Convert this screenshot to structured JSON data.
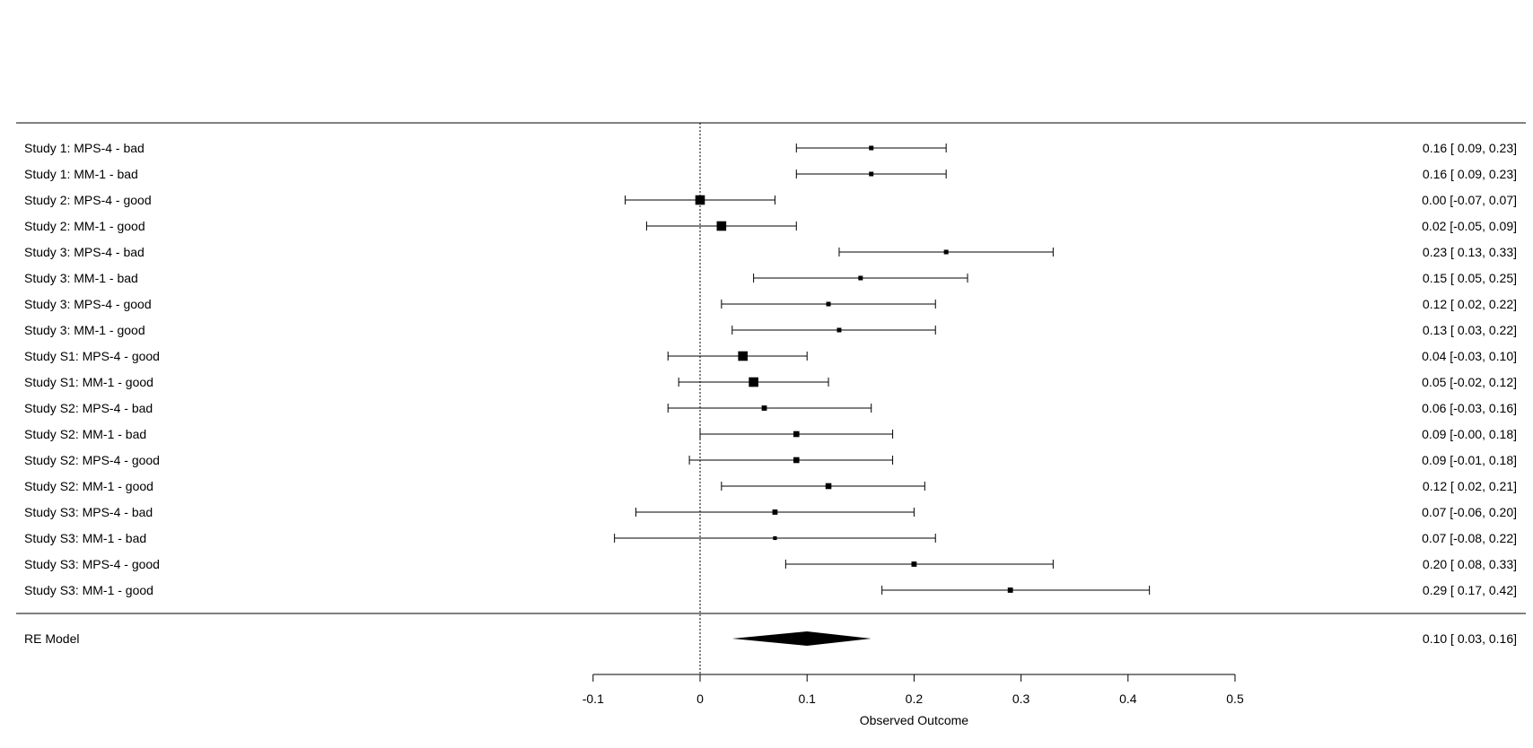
{
  "chart_data": {
    "type": "forest",
    "xlabel": "Observed Outcome",
    "xlim": [
      -0.1,
      0.5
    ],
    "xticks": [
      -0.1,
      0,
      0.1,
      0.2,
      0.3,
      0.4,
      0.5
    ],
    "xtick_labels": [
      "-0.1",
      "0",
      "0.1",
      "0.2",
      "0.3",
      "0.4",
      "0.5"
    ],
    "reference_line": 0,
    "studies": [
      {
        "label": "Study 1: MPS-4 - bad",
        "estimate": 0.16,
        "lower": 0.09,
        "upper": 0.23,
        "text": "0.16 [ 0.09, 0.23]",
        "weight": 1.0
      },
      {
        "label": "Study 1: MM-1 - bad",
        "estimate": 0.16,
        "lower": 0.09,
        "upper": 0.23,
        "text": "0.16 [ 0.09, 0.23]",
        "weight": 1.0
      },
      {
        "label": "Study 2: MPS-4 - good",
        "estimate": 0.0,
        "lower": -0.07,
        "upper": 0.07,
        "text": "0.00 [-0.07, 0.07]",
        "weight": 2.4
      },
      {
        "label": "Study 2: MM-1 - good",
        "estimate": 0.02,
        "lower": -0.05,
        "upper": 0.09,
        "text": "0.02 [-0.05, 0.09]",
        "weight": 2.4
      },
      {
        "label": "Study 3: MPS-4 - bad",
        "estimate": 0.23,
        "lower": 0.13,
        "upper": 0.33,
        "text": "0.23 [ 0.13, 0.33]",
        "weight": 1.0
      },
      {
        "label": "Study 3: MM-1 - bad",
        "estimate": 0.15,
        "lower": 0.05,
        "upper": 0.25,
        "text": "0.15 [ 0.05, 0.25]",
        "weight": 1.0
      },
      {
        "label": "Study 3: MPS-4 - good",
        "estimate": 0.12,
        "lower": 0.02,
        "upper": 0.22,
        "text": "0.12 [ 0.02, 0.22]",
        "weight": 1.0
      },
      {
        "label": "Study 3: MM-1 - good",
        "estimate": 0.13,
        "lower": 0.03,
        "upper": 0.22,
        "text": "0.13 [ 0.03, 0.22]",
        "weight": 1.0
      },
      {
        "label": "Study S1: MPS-4 - good",
        "estimate": 0.04,
        "lower": -0.03,
        "upper": 0.1,
        "text": "0.04 [-0.03, 0.10]",
        "weight": 2.4
      },
      {
        "label": "Study S1: MM-1 - good",
        "estimate": 0.05,
        "lower": -0.02,
        "upper": 0.12,
        "text": "0.05 [-0.02, 0.12]",
        "weight": 2.4
      },
      {
        "label": "Study S2: MPS-4 - bad",
        "estimate": 0.06,
        "lower": -0.03,
        "upper": 0.16,
        "text": "0.06 [-0.03, 0.16]",
        "weight": 1.2
      },
      {
        "label": "Study S2: MM-1 - bad",
        "estimate": 0.09,
        "lower": -0.0,
        "upper": 0.18,
        "text": "0.09 [-0.00, 0.18]",
        "weight": 1.4
      },
      {
        "label": "Study S2: MPS-4 - good",
        "estimate": 0.09,
        "lower": -0.01,
        "upper": 0.18,
        "text": "0.09 [-0.01, 0.18]",
        "weight": 1.4
      },
      {
        "label": "Study S2: MM-1 - good",
        "estimate": 0.12,
        "lower": 0.02,
        "upper": 0.21,
        "text": "0.12 [ 0.02, 0.21]",
        "weight": 1.4
      },
      {
        "label": "Study S3: MPS-4 - bad",
        "estimate": 0.07,
        "lower": -0.06,
        "upper": 0.2,
        "text": "0.07 [-0.06, 0.20]",
        "weight": 1.2
      },
      {
        "label": "Study S3: MM-1 - bad",
        "estimate": 0.07,
        "lower": -0.08,
        "upper": 0.22,
        "text": "0.07 [-0.08, 0.22]",
        "weight": 0.8
      },
      {
        "label": "Study S3: MPS-4 - good",
        "estimate": 0.2,
        "lower": 0.08,
        "upper": 0.33,
        "text": "0.20 [ 0.08, 0.33]",
        "weight": 1.2
      },
      {
        "label": "Study S3: MM-1 - good",
        "estimate": 0.29,
        "lower": 0.17,
        "upper": 0.42,
        "text": "0.29 [ 0.17, 0.42]",
        "weight": 1.2
      }
    ],
    "summary": {
      "label": "RE Model",
      "estimate": 0.1,
      "lower": 0.03,
      "upper": 0.16,
      "text": "0.10 [ 0.03, 0.16]"
    },
    "colors": {
      "marks": "#000000",
      "background": "#ffffff"
    }
  }
}
